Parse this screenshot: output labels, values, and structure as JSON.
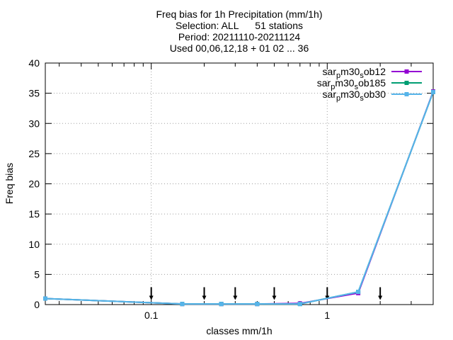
{
  "chart_data": {
    "type": "line",
    "title_lines": [
      "Freq bias  for 1h Precipitation (mm/1h)",
      "Selection: ALL      51 stations",
      "Period: 20211110-20211124",
      "Used 00,06,12,18 + 01 02 ... 36"
    ],
    "xlabel": "classes mm/1h",
    "ylabel": "Freq bias",
    "xscale": "log",
    "xlim": [
      0.025,
      4
    ],
    "ylim": [
      0,
      40
    ],
    "yticks": [
      0,
      5,
      10,
      15,
      20,
      25,
      30,
      35,
      40
    ],
    "xticks": [
      {
        "value": 0.1,
        "label": "0.1"
      },
      {
        "value": 1,
        "label": "1"
      }
    ],
    "grid": true,
    "legend_position": "top-right",
    "series": [
      {
        "name_parts": [
          "sar",
          "p",
          "m30",
          "s",
          "ob12"
        ],
        "color": "#9400d3",
        "x": [
          0.025,
          0.15,
          0.25,
          0.4,
          0.7,
          1.5,
          4
        ],
        "y": [
          1.0,
          0.1,
          0.1,
          0.1,
          0.2,
          1.9,
          35.3
        ]
      },
      {
        "name_parts": [
          "sar",
          "p",
          "m30",
          "s",
          "ob185"
        ],
        "color": "#009e73",
        "x": [
          0.025,
          0.15,
          0.25,
          0.4,
          0.7,
          1.5,
          4
        ],
        "y": [
          1.0,
          0.1,
          0.1,
          0.1,
          0.1,
          2.1,
          35.2
        ]
      },
      {
        "name_parts": [
          "sar",
          "p",
          "m30",
          "s",
          "ob30"
        ],
        "color": "#56b4e9",
        "x": [
          0.025,
          0.15,
          0.25,
          0.4,
          0.7,
          1.5,
          4
        ],
        "y": [
          1.0,
          0.1,
          0.1,
          0.1,
          0.1,
          2.1,
          35.2
        ]
      }
    ],
    "arrow_markers_x": [
      0.1,
      0.2,
      0.3,
      0.5,
      1,
      2
    ],
    "arrow_marker_y": 1.0
  }
}
